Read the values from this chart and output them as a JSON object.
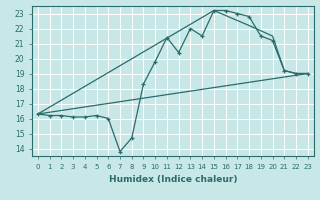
{
  "xlabel": "Humidex (Indice chaleur)",
  "bg_color": "#c8e8e8",
  "grid_color": "#ffffff",
  "line_color": "#2a6b6b",
  "xlim": [
    -0.5,
    23.5
  ],
  "ylim": [
    13.5,
    23.5
  ],
  "xticks": [
    0,
    1,
    2,
    3,
    4,
    5,
    6,
    7,
    8,
    9,
    10,
    11,
    12,
    13,
    14,
    15,
    16,
    17,
    18,
    19,
    20,
    21,
    22,
    23
  ],
  "yticks": [
    14,
    15,
    16,
    17,
    18,
    19,
    20,
    21,
    22,
    23
  ],
  "line1_x": [
    0,
    1,
    2,
    3,
    4,
    5,
    6,
    7,
    8,
    9,
    10,
    11,
    12,
    13,
    14,
    15,
    16,
    17,
    18,
    19,
    20,
    21,
    22,
    23
  ],
  "line1_y": [
    16.3,
    16.2,
    16.2,
    16.1,
    16.1,
    16.2,
    16.0,
    13.8,
    14.7,
    18.3,
    19.8,
    21.4,
    20.4,
    22.0,
    21.5,
    23.2,
    23.2,
    23.0,
    22.8,
    21.5,
    21.2,
    19.2,
    19.0,
    19.0
  ],
  "line2_x": [
    0,
    23
  ],
  "line2_y": [
    16.3,
    19.0
  ],
  "line3_x": [
    0,
    15,
    18,
    20,
    21,
    22,
    23
  ],
  "line3_y": [
    16.3,
    23.2,
    22.2,
    21.5,
    19.2,
    19.0,
    19.0
  ]
}
